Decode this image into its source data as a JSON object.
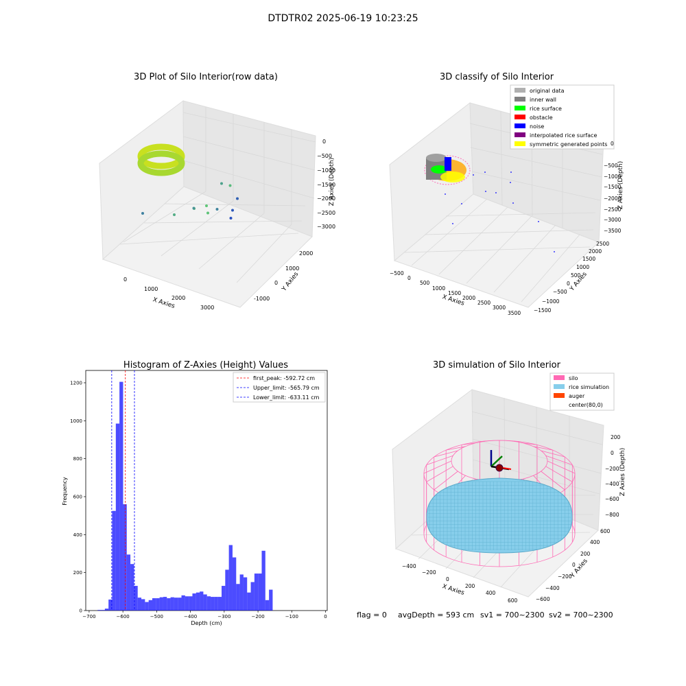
{
  "suptitle": "DTDTR02 2025-06-19 10:23:25",
  "footer": {
    "flag": "flag = 0",
    "avg_depth": "avgDepth = 593 cm",
    "sv1": "sv1 = 700~2300",
    "sv2": "sv2 = 700~2300"
  },
  "chart_data": [
    {
      "type": "scatter",
      "title": "3D Plot of Silo Interior(row data)",
      "xlabel": "X Axies",
      "ylabel": "Y Axies",
      "zlabel": "Z Axies (Depth)",
      "xticks": [
        "0",
        "1000",
        "2000",
        "3000"
      ],
      "yticks": [
        "-1000",
        "0",
        "1000",
        "2000"
      ],
      "zticks": [
        "0",
        "−500",
        "−1000",
        "−1500",
        "−2000",
        "−2500",
        "−3000"
      ],
      "points": [
        {
          "x": 1500,
          "y": 1300,
          "z": -300
        },
        {
          "x": 1700,
          "y": 1100,
          "z": -400
        },
        {
          "x": 1800,
          "y": 1700,
          "z": -600
        },
        {
          "x": 1500,
          "y": 900,
          "z": -700
        },
        {
          "x": 1300,
          "y": 500,
          "z": -900
        },
        {
          "x": 1900,
          "y": 1300,
          "z": -1200
        },
        {
          "x": 1900,
          "y": 400,
          "z": -1500
        },
        {
          "x": 2600,
          "y": 300,
          "z": -1900
        },
        {
          "x": 1200,
          "y": -400,
          "z": -2000
        },
        {
          "x": 3300,
          "y": 100,
          "z": -2800
        },
        {
          "x": 3500,
          "y": -300,
          "z": -3000
        },
        {
          "x": 3700,
          "y": -600,
          "z": -3200
        }
      ]
    },
    {
      "type": "scatter",
      "title": "3D classify of Silo Interior",
      "xlabel": "X Axies",
      "ylabel": "Y Axies",
      "zlabel": "Z Axies (Depth)",
      "xticks": [
        "−500",
        "0",
        "500",
        "1000",
        "1500",
        "2000",
        "2500",
        "3000",
        "3500"
      ],
      "yticks": [
        "−1500",
        "−1000",
        "−500",
        "0",
        "500",
        "1000",
        "1500",
        "2000",
        "2500"
      ],
      "zticks": [
        "0",
        "−500",
        "−1000",
        "−1500",
        "−2000",
        "−2500",
        "−3000",
        "−3500"
      ],
      "legend_position": "top-right",
      "legend": [
        {
          "label": "original data",
          "color": "#b0b0b0"
        },
        {
          "label": "inner wall",
          "color": "#808080"
        },
        {
          "label": "rice surface",
          "color": "#00ff00"
        },
        {
          "label": "obstacle",
          "color": "#ff0000"
        },
        {
          "label": "noise",
          "color": "#0000ff"
        },
        {
          "label": "interpolated rice surface",
          "color": "#800080"
        },
        {
          "label": "symmetric generated points",
          "color": "#ffff00"
        }
      ]
    },
    {
      "type": "bar",
      "title": "Histogram of Z-Axies (Height) Values",
      "xlabel": "Depth (cm)",
      "ylabel": "Frequency",
      "xlim": [
        -710,
        5
      ],
      "ylim": [
        0,
        1265
      ],
      "bin_width": 10.8,
      "bin_start": -675,
      "xticks": [
        -700,
        -600,
        -500,
        -400,
        -300,
        -200,
        -100,
        0
      ],
      "yticks": [
        0,
        200,
        400,
        600,
        800,
        1000,
        1200
      ],
      "bar_color": "#0000ff",
      "values": [
        3,
        3,
        10,
        58,
        525,
        985,
        1205,
        560,
        295,
        245,
        130,
        68,
        60,
        45,
        55,
        65,
        65,
        70,
        72,
        65,
        70,
        68,
        68,
        80,
        75,
        75,
        90,
        95,
        100,
        85,
        75,
        72,
        72,
        72,
        130,
        215,
        345,
        280,
        140,
        190,
        175,
        95,
        150,
        195,
        195,
        315,
        55,
        110
      ],
      "vlines": [
        {
          "label": "first_peak: -592.72 cm",
          "value": -592.72,
          "color": "#ff0000"
        },
        {
          "label": "Upper_limit: -565.79 cm",
          "value": -565.79,
          "color": "#0000ff"
        },
        {
          "label": "Lower_limit: -633.11 cm",
          "value": -633.11,
          "color": "#0000ff"
        }
      ],
      "legend_position": "top-right"
    },
    {
      "type": "scatter",
      "title": "3D simulation of Silo Interior",
      "xlabel": "X Axies",
      "ylabel": "Y Axies",
      "zlabel": "Z Axies (Depth)",
      "xticks": [
        "−400",
        "−200",
        "0",
        "200",
        "400",
        "600"
      ],
      "yticks": [
        "−600",
        "−400",
        "−200",
        "0",
        "200",
        "400",
        "600"
      ],
      "zticks": [
        "200",
        "0",
        "−200",
        "−400",
        "−600",
        "−800"
      ],
      "legend_position": "top-right",
      "legend": [
        {
          "label": "silo",
          "color": "#ff69b4"
        },
        {
          "label": "rice simulation",
          "color": "#87ceeb"
        },
        {
          "label": "auger",
          "color": "#ff4500"
        },
        {
          "label": "center(80,0)",
          "color": "#ffffff"
        }
      ]
    }
  ]
}
